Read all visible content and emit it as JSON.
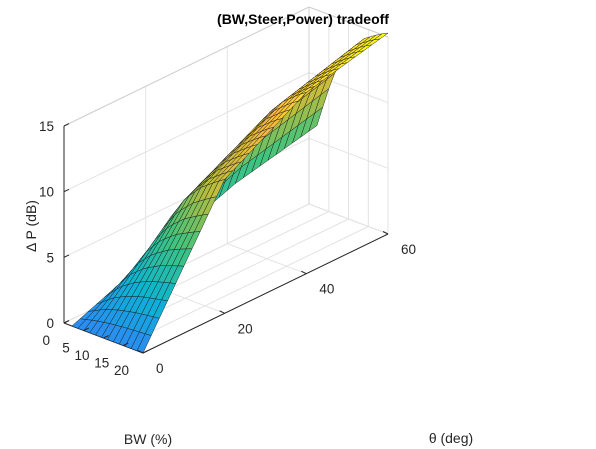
{
  "chart_data": {
    "type": "surface",
    "title": "(BW,Steer,Power) tradeoff",
    "xlabel": "BW (%)",
    "ylabel": "θ (deg)",
    "zlabel": "Δ P (dB)",
    "x_ticks": [
      "0",
      "5",
      "10",
      "15",
      "20"
    ],
    "y_ticks": [
      "0",
      "20",
      "40",
      "60"
    ],
    "z_ticks": [
      "0",
      "5",
      "10",
      "15"
    ],
    "xlim": [
      0,
      20
    ],
    "ylim": [
      0,
      60
    ],
    "zlim": [
      0,
      15
    ],
    "grid": true,
    "colormap": "parula",
    "colormap_stops": [
      "#3e26a8",
      "#2e87f7",
      "#0bb4d3",
      "#41c47c",
      "#b7bd3d",
      "#fbba3d",
      "#f9fb15"
    ],
    "surface_samples": {
      "bw": [
        2,
        6,
        10,
        14,
        18,
        20
      ],
      "theta_0": [
        0,
        0,
        0,
        0,
        0,
        0
      ],
      "theta_20": [
        2.5,
        5.6,
        7.6,
        8.9,
        9.8,
        10.2
      ],
      "theta_40": [
        4.8,
        8.6,
        11.0,
        12.4,
        13.4,
        13.8
      ],
      "theta_60": [
        6.2,
        10.4,
        12.8,
        14.2,
        15.0,
        15.3
      ]
    }
  }
}
